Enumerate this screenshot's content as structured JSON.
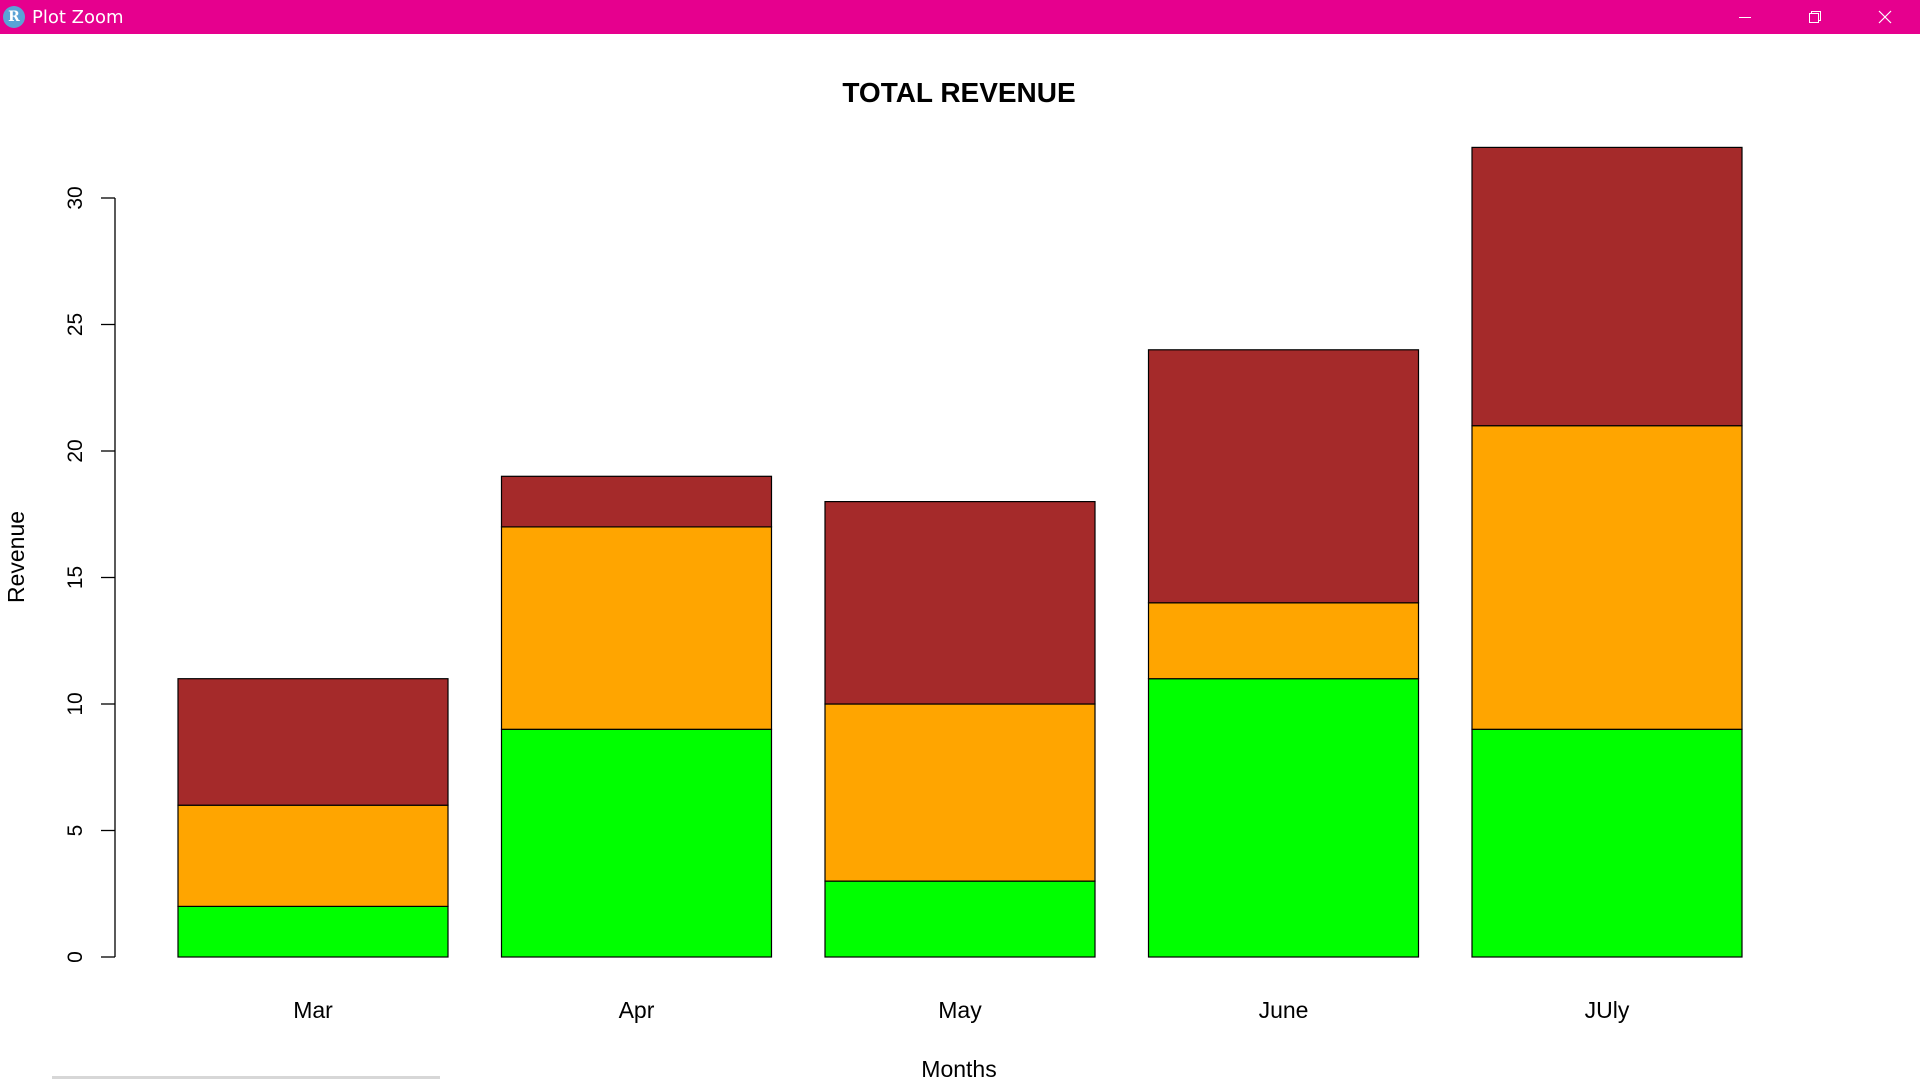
{
  "window": {
    "title": "Plot Zoom",
    "app_icon_letter": "R",
    "titlebar_color": "#e6008e",
    "controls": [
      "minimize-icon",
      "restore-icon",
      "close-icon"
    ]
  },
  "chart_data": {
    "type": "bar",
    "stacked": true,
    "title": "TOTAL REVENUE",
    "xlabel": "Months",
    "ylabel": "Revenue",
    "categories": [
      "Mar",
      "Apr",
      "May",
      "June",
      "JUly"
    ],
    "series": [
      {
        "color": "#00ff00",
        "values": [
          2,
          9,
          3,
          11,
          9
        ]
      },
      {
        "color": "#ffa500",
        "values": [
          4,
          8,
          7,
          3,
          12
        ]
      },
      {
        "color": "#a52a2a",
        "values": [
          5,
          2,
          8,
          10,
          11
        ]
      }
    ],
    "yticks": [
      "0",
      "5",
      "10",
      "15",
      "20",
      "25",
      "30"
    ],
    "ylim": [
      0,
      32
    ],
    "grid": false,
    "legend": "none"
  }
}
